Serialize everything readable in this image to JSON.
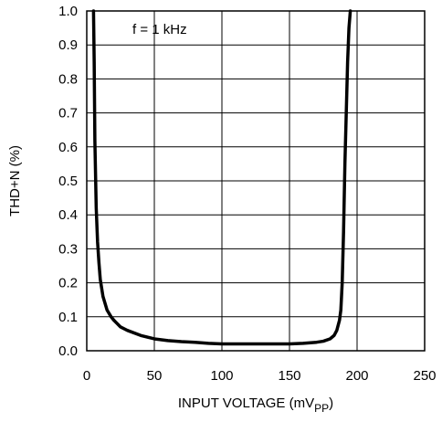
{
  "chart_data": {
    "type": "line",
    "title": "",
    "xlabel": "INPUT VOLTAGE (mV",
    "xlabel_subscript": "PP",
    "xlabel_suffix": ")",
    "ylabel": "THD+N (%)",
    "xlim": [
      0,
      250
    ],
    "ylim": [
      0,
      1.0
    ],
    "x_ticks": [
      0,
      50,
      100,
      150,
      200,
      250
    ],
    "y_ticks": [
      0.0,
      0.1,
      0.2,
      0.3,
      0.4,
      0.5,
      0.6,
      0.7,
      0.8,
      0.9,
      1.0
    ],
    "x_tick_labels": [
      "0",
      "50",
      "100",
      "150",
      "200",
      "250"
    ],
    "y_tick_labels": [
      "0.0",
      "0.1",
      "0.2",
      "0.3",
      "0.4",
      "0.5",
      "0.6",
      "0.7",
      "0.8",
      "0.9",
      "1.0"
    ],
    "grid": true,
    "legend": "none",
    "annotation": "f = 1 kHz",
    "line_color": "#000000",
    "series": [
      {
        "x": [
          5,
          5.5,
          6,
          7,
          8,
          9,
          10,
          12,
          15,
          18,
          20,
          25,
          30,
          40,
          50,
          60,
          70,
          80,
          90,
          100,
          110,
          120,
          130,
          140,
          150,
          160,
          170,
          175,
          180,
          183,
          185,
          187,
          188,
          189,
          190,
          191,
          192,
          193,
          194,
          195
        ],
        "y": [
          1.0,
          0.85,
          0.62,
          0.42,
          0.32,
          0.26,
          0.21,
          0.16,
          0.12,
          0.1,
          0.09,
          0.07,
          0.06,
          0.045,
          0.035,
          0.03,
          0.027,
          0.025,
          0.022,
          0.02,
          0.02,
          0.02,
          0.02,
          0.02,
          0.02,
          0.022,
          0.025,
          0.028,
          0.035,
          0.045,
          0.06,
          0.09,
          0.12,
          0.2,
          0.35,
          0.55,
          0.7,
          0.85,
          0.95,
          1.0
        ]
      }
    ]
  }
}
